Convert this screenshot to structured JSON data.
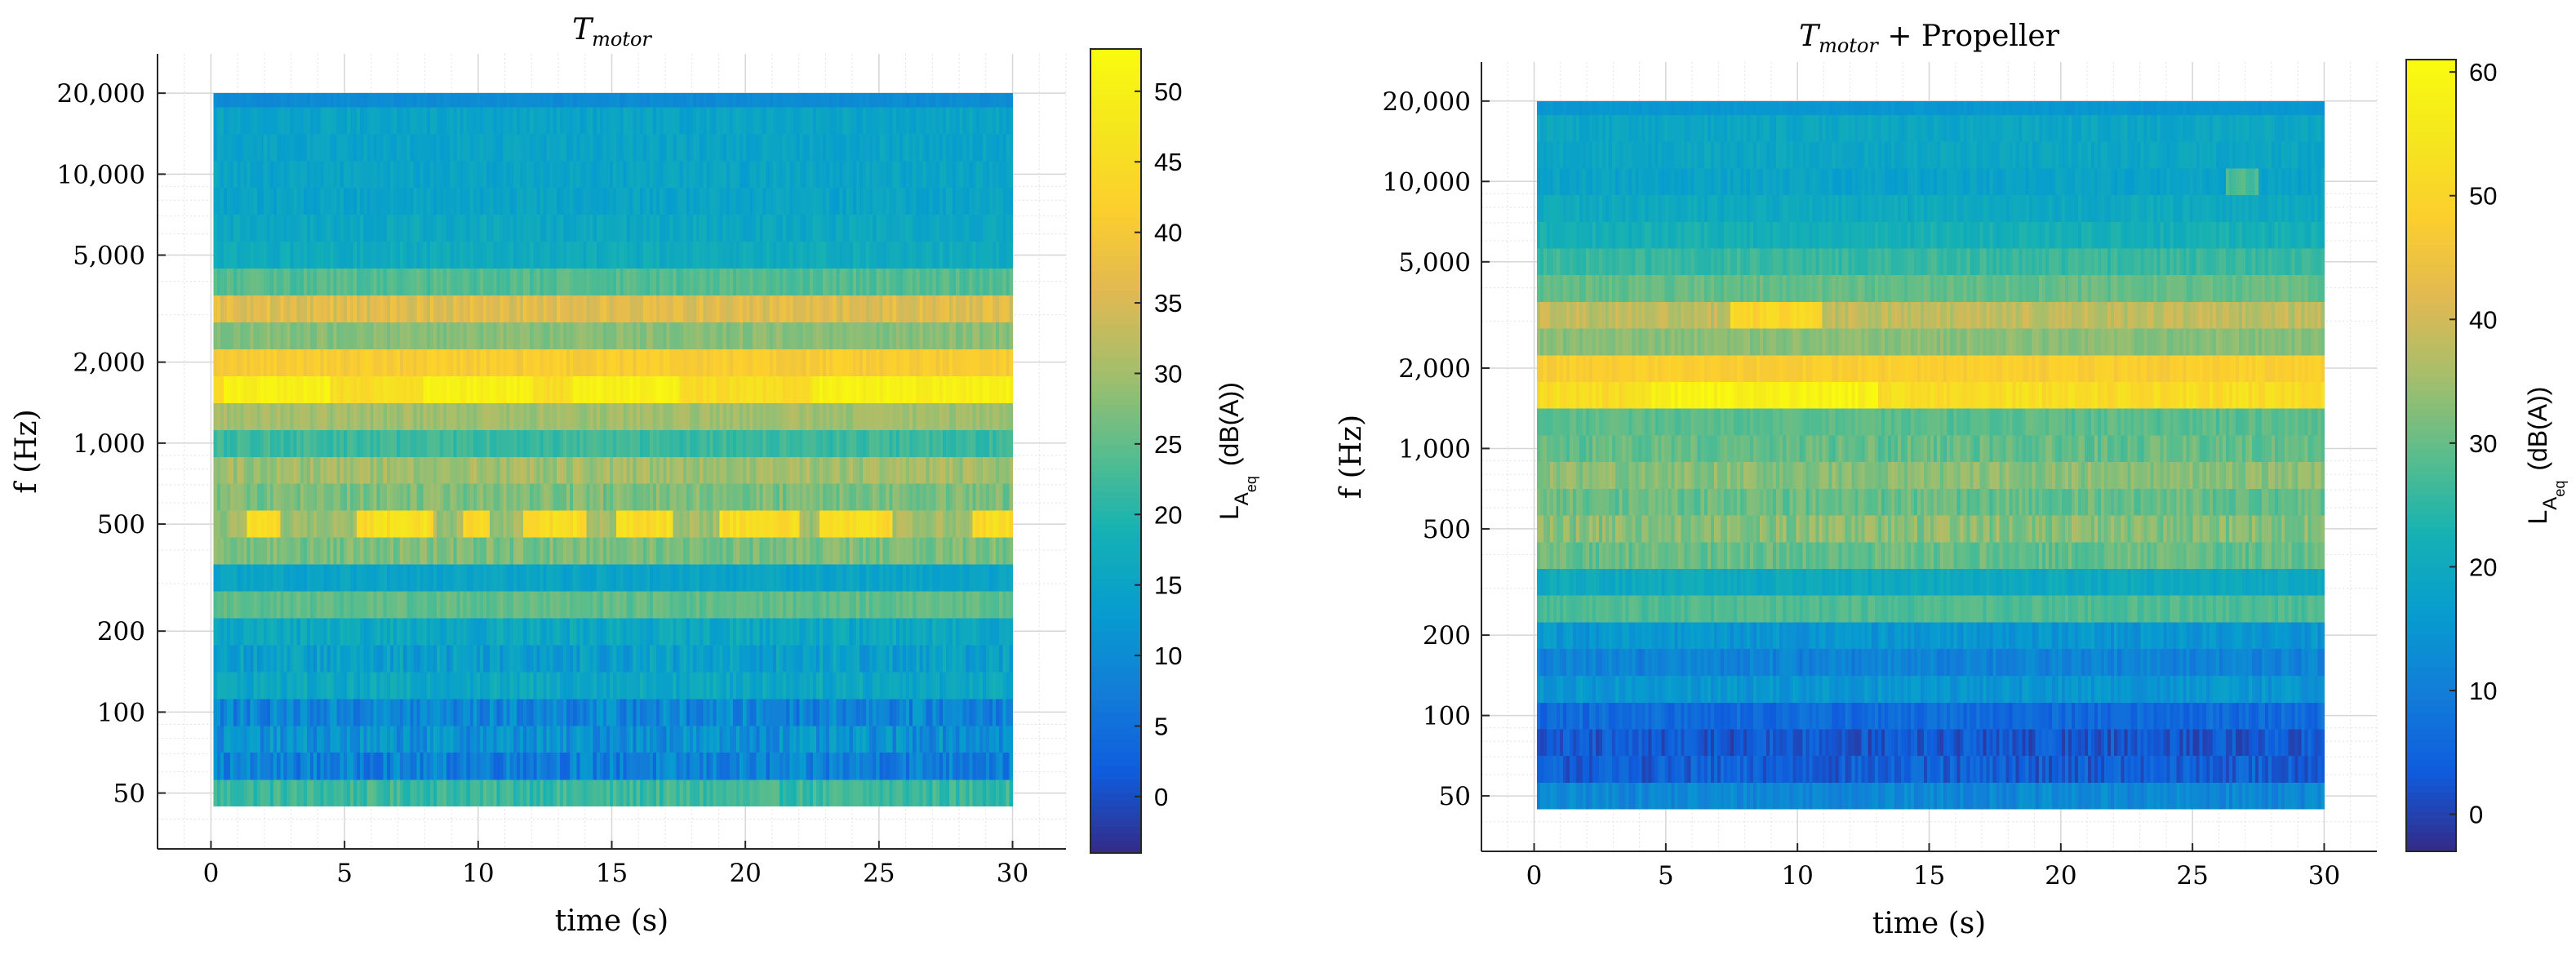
{
  "chart_data": [
    {
      "type": "heatmap",
      "title": "T_motor",
      "title_base": "T",
      "title_sub": "motor",
      "title_rest": "",
      "xlabel": "time (s)",
      "ylabel": "f  (Hz)",
      "xlim": [
        -2,
        32
      ],
      "ylim_hz": [
        31,
        28000
      ],
      "x_ticks": [
        0,
        5,
        10,
        15,
        20,
        25,
        30
      ],
      "y_ticks": [
        50,
        100,
        200,
        500,
        1000,
        2000,
        5000,
        10000,
        20000
      ],
      "y_tick_labels": [
        "50",
        "100",
        "200",
        "500",
        "1,000",
        "2,000",
        "5,000",
        "10,000",
        "20,000"
      ],
      "grid": true,
      "time_range": [
        0.1,
        30
      ],
      "colormap": "parula",
      "colorbar": {
        "label": "L_A_eq (dB(A))",
        "label_main": "L",
        "label_sub": "A",
        "label_subsub": "eq",
        "label_unit": "(dB(A))",
        "range": [
          -4,
          53
        ],
        "ticks": [
          0,
          5,
          10,
          15,
          20,
          25,
          30,
          35,
          40,
          45,
          50
        ]
      },
      "bands": [
        {
          "f_low": 44.7,
          "f_high": 56.2,
          "level": 22,
          "spread": 3,
          "hot_windows": []
        },
        {
          "f_low": 56.2,
          "f_high": 70.8,
          "level": 8,
          "spread": 5,
          "hot_windows": []
        },
        {
          "f_low": 70.8,
          "f_high": 89.1,
          "level": 11,
          "spread": 5,
          "hot_windows": []
        },
        {
          "f_low": 89.1,
          "f_high": 112,
          "level": 9,
          "spread": 5,
          "hot_windows": []
        },
        {
          "f_low": 112,
          "f_high": 141,
          "level": 16,
          "spread": 3,
          "hot_windows": []
        },
        {
          "f_low": 141,
          "f_high": 178,
          "level": 14,
          "spread": 4,
          "hot_windows": []
        },
        {
          "f_low": 178,
          "f_high": 224,
          "level": 16,
          "spread": 3,
          "hot_windows": []
        },
        {
          "f_low": 224,
          "f_high": 282,
          "level": 25,
          "spread": 2,
          "hot_windows": []
        },
        {
          "f_low": 282,
          "f_high": 355,
          "level": 15,
          "spread": 2,
          "hot_windows": []
        },
        {
          "f_low": 355,
          "f_high": 447,
          "level": 27,
          "spread": 3,
          "hot_windows": []
        },
        {
          "f_low": 447,
          "f_high": 562,
          "level": 30,
          "spread": 3,
          "hot_windows": [
            [
              1.4,
              2.6,
              45
            ],
            [
              5.4,
              8.3,
              45
            ],
            [
              9.4,
              10.5,
              45
            ],
            [
              11.7,
              14.0,
              45
            ],
            [
              15.2,
              17.3,
              45
            ],
            [
              19.0,
              22.0,
              45
            ],
            [
              22.8,
              25.5,
              45
            ],
            [
              28.5,
              30.0,
              45
            ]
          ]
        },
        {
          "f_low": 562,
          "f_high": 708,
          "level": 27,
          "spread": 3,
          "hot_windows": []
        },
        {
          "f_low": 708,
          "f_high": 891,
          "level": 30,
          "spread": 3,
          "hot_windows": []
        },
        {
          "f_low": 891,
          "f_high": 1122,
          "level": 22,
          "spread": 2,
          "hot_windows": []
        },
        {
          "f_low": 1122,
          "f_high": 1413,
          "level": 30,
          "spread": 2,
          "hot_windows": []
        },
        {
          "f_low": 1413,
          "f_high": 1778,
          "level": 45,
          "spread": 2,
          "hot_windows": [
            [
              0.5,
              4.5,
              50
            ],
            [
              8.0,
              12.0,
              50
            ],
            [
              13.5,
              17.5,
              50
            ],
            [
              22.5,
              30.0,
              50
            ]
          ]
        },
        {
          "f_low": 1778,
          "f_high": 2239,
          "level": 41,
          "spread": 2,
          "hot_windows": []
        },
        {
          "f_low": 2239,
          "f_high": 2818,
          "level": 28,
          "spread": 2,
          "hot_windows": []
        },
        {
          "f_low": 2818,
          "f_high": 3548,
          "level": 36,
          "spread": 3,
          "hot_windows": []
        },
        {
          "f_low": 3548,
          "f_high": 4467,
          "level": 24,
          "spread": 2,
          "hot_windows": []
        },
        {
          "f_low": 4467,
          "f_high": 5623,
          "level": 17,
          "spread": 2,
          "hot_windows": []
        },
        {
          "f_low": 5623,
          "f_high": 7079,
          "level": 16,
          "spread": 2,
          "hot_windows": []
        },
        {
          "f_low": 7079,
          "f_high": 8913,
          "level": 15,
          "spread": 2,
          "hot_windows": []
        },
        {
          "f_low": 8913,
          "f_high": 11220,
          "level": 15,
          "spread": 2,
          "hot_windows": []
        },
        {
          "f_low": 11220,
          "f_high": 14125,
          "level": 15,
          "spread": 2,
          "hot_windows": []
        },
        {
          "f_low": 14125,
          "f_high": 17783,
          "level": 15,
          "spread": 2,
          "hot_windows": []
        },
        {
          "f_low": 17783,
          "f_high": 20000,
          "level": 10,
          "spread": 1,
          "hot_windows": []
        }
      ]
    },
    {
      "type": "heatmap",
      "title": "T_motor + Propeller",
      "title_base": "T",
      "title_sub": "motor",
      "title_rest": " + Propeller",
      "xlabel": "time (s)",
      "ylabel": "f  (Hz)",
      "xlim": [
        -2,
        32
      ],
      "ylim_hz": [
        31,
        28000
      ],
      "x_ticks": [
        0,
        5,
        10,
        15,
        20,
        25,
        30
      ],
      "y_ticks": [
        50,
        100,
        200,
        500,
        1000,
        2000,
        5000,
        10000,
        20000
      ],
      "y_tick_labels": [
        "50",
        "100",
        "200",
        "500",
        "1,000",
        "2,000",
        "5,000",
        "10,000",
        "20,000"
      ],
      "grid": true,
      "time_range": [
        0.1,
        30
      ],
      "colormap": "parula",
      "colorbar": {
        "label": "L_A_eq (dB(A))",
        "label_main": "L",
        "label_sub": "A",
        "label_subsub": "eq",
        "label_unit": "(dB(A))",
        "range": [
          -3,
          61
        ],
        "ticks": [
          0,
          10,
          20,
          30,
          40,
          50,
          60
        ]
      },
      "bands": [
        {
          "f_low": 44.7,
          "f_high": 56.2,
          "level": 12,
          "spread": 3,
          "hot_windows": []
        },
        {
          "f_low": 56.2,
          "f_high": 70.8,
          "level": 4,
          "spread": 4,
          "hot_windows": []
        },
        {
          "f_low": 70.8,
          "f_high": 89.1,
          "level": 3,
          "spread": 4,
          "hot_windows": []
        },
        {
          "f_low": 89.1,
          "f_high": 112,
          "level": 6,
          "spread": 3,
          "hot_windows": []
        },
        {
          "f_low": 112,
          "f_high": 141,
          "level": 15,
          "spread": 3,
          "hot_windows": []
        },
        {
          "f_low": 141,
          "f_high": 178,
          "level": 11,
          "spread": 3,
          "hot_windows": []
        },
        {
          "f_low": 178,
          "f_high": 224,
          "level": 15,
          "spread": 3,
          "hot_windows": []
        },
        {
          "f_low": 224,
          "f_high": 282,
          "level": 28,
          "spread": 2,
          "hot_windows": []
        },
        {
          "f_low": 282,
          "f_high": 355,
          "level": 20,
          "spread": 2,
          "hot_windows": []
        },
        {
          "f_low": 355,
          "f_high": 447,
          "level": 30,
          "spread": 3,
          "hot_windows": []
        },
        {
          "f_low": 447,
          "f_high": 562,
          "level": 33,
          "spread": 4,
          "hot_windows": []
        },
        {
          "f_low": 562,
          "f_high": 708,
          "level": 30,
          "spread": 3,
          "hot_windows": []
        },
        {
          "f_low": 708,
          "f_high": 891,
          "level": 33,
          "spread": 3,
          "hot_windows": []
        },
        {
          "f_low": 891,
          "f_high": 1122,
          "level": 30,
          "spread": 3,
          "hot_windows": []
        },
        {
          "f_low": 1122,
          "f_high": 1413,
          "level": 29,
          "spread": 2,
          "hot_windows": []
        },
        {
          "f_low": 1413,
          "f_high": 1778,
          "level": 52,
          "spread": 3,
          "hot_windows": [
            [
              4.5,
              13.0,
              58
            ]
          ]
        },
        {
          "f_low": 1778,
          "f_high": 2239,
          "level": 48,
          "spread": 2,
          "hot_windows": []
        },
        {
          "f_low": 2239,
          "f_high": 2818,
          "level": 33,
          "spread": 2,
          "hot_windows": []
        },
        {
          "f_low": 2818,
          "f_high": 3548,
          "level": 38,
          "spread": 3,
          "hot_windows": [
            [
              7.5,
              11.0,
              50
            ]
          ]
        },
        {
          "f_low": 3548,
          "f_high": 4467,
          "level": 30,
          "spread": 2,
          "hot_windows": []
        },
        {
          "f_low": 4467,
          "f_high": 5623,
          "level": 26,
          "spread": 2,
          "hot_windows": []
        },
        {
          "f_low": 5623,
          "f_high": 7079,
          "level": 22,
          "spread": 2,
          "hot_windows": []
        },
        {
          "f_low": 7079,
          "f_high": 8913,
          "level": 20,
          "spread": 2,
          "hot_windows": []
        },
        {
          "f_low": 8913,
          "f_high": 11220,
          "level": 18,
          "spread": 2,
          "hot_windows": [
            [
              26.3,
              27.5,
              28
            ]
          ]
        },
        {
          "f_low": 11220,
          "f_high": 14125,
          "level": 19,
          "spread": 2,
          "hot_windows": []
        },
        {
          "f_low": 14125,
          "f_high": 17783,
          "level": 19,
          "spread": 2,
          "hot_windows": []
        },
        {
          "f_low": 17783,
          "f_high": 20000,
          "level": 15,
          "spread": 1,
          "hot_windows": []
        }
      ]
    }
  ]
}
